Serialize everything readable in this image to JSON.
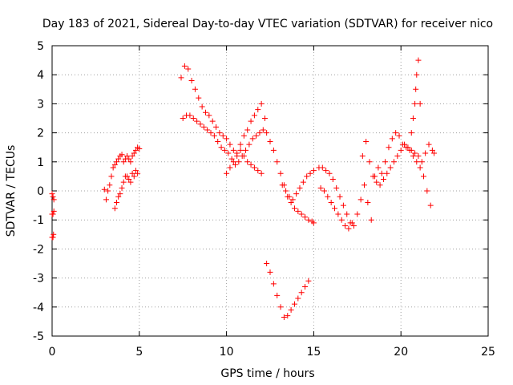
{
  "chart_data": {
    "type": "scatter",
    "title": "Day 183 of 2021, Sidereal Day-to-day VTEC variation (SDTVAR) for receiver nico",
    "xlabel": "GPS time / hours",
    "ylabel": "SDTVAR / TECUs",
    "xlim": [
      0,
      25
    ],
    "ylim": [
      -5,
      5
    ],
    "xticks": [
      0,
      5,
      10,
      15,
      20,
      25
    ],
    "yticks": [
      -5,
      -4,
      -3,
      -2,
      -1,
      0,
      1,
      2,
      3,
      4,
      5
    ],
    "grid": true,
    "marker": "+",
    "series_color": "#ff0000",
    "series": [
      {
        "x": [
          0.0,
          0.05,
          0.1,
          0.0,
          0.05,
          0.1,
          0.0,
          0.05,
          0.08,
          3.0,
          3.1,
          3.2,
          3.3,
          3.4,
          3.5,
          3.6,
          3.7,
          3.8,
          3.9,
          4.0,
          4.1,
          4.2,
          4.3,
          4.4,
          4.5,
          4.6,
          4.7,
          4.8,
          4.9,
          5.0,
          3.6,
          3.7,
          3.8,
          3.9,
          4.0,
          4.1,
          4.2,
          4.3,
          4.4,
          4.5,
          4.6,
          4.7,
          4.8,
          4.9,
          7.4,
          7.6,
          7.8,
          8.0,
          8.2,
          8.4,
          8.6,
          8.8,
          9.0,
          9.2,
          9.4,
          9.6,
          9.8,
          10.0,
          10.2,
          10.4,
          10.6,
          10.8,
          11.0,
          11.2,
          11.4,
          11.6,
          11.8,
          12.0,
          12.2,
          7.5,
          7.7,
          7.9,
          8.1,
          8.3,
          8.5,
          8.7,
          8.9,
          9.1,
          9.3,
          9.5,
          9.7,
          9.9,
          10.1,
          10.3,
          10.5,
          10.7,
          10.9,
          11.1,
          11.3,
          11.5,
          11.7,
          11.9,
          12.1,
          10.0,
          10.2,
          10.4,
          10.6,
          10.8,
          11.0,
          11.2,
          11.4,
          11.6,
          11.8,
          12.0,
          12.3,
          12.5,
          12.7,
          12.9,
          13.1,
          13.3,
          13.5,
          13.7,
          13.9,
          14.1,
          14.3,
          14.5,
          14.7,
          14.9,
          15.0,
          12.3,
          12.5,
          12.7,
          12.9,
          13.1,
          13.3,
          13.5,
          13.7,
          13.9,
          14.1,
          14.3,
          14.5,
          14.7,
          13.2,
          13.4,
          13.6,
          13.8,
          14.0,
          14.2,
          14.4,
          14.6,
          14.8,
          15.0,
          15.3,
          15.5,
          15.7,
          15.9,
          16.1,
          16.3,
          16.5,
          16.7,
          16.9,
          17.1,
          17.3,
          17.5,
          17.7,
          17.9,
          15.4,
          15.6,
          15.8,
          16.0,
          16.2,
          16.4,
          16.6,
          16.8,
          17.0,
          17.2,
          17.8,
          18.0,
          18.2,
          18.4,
          18.6,
          18.8,
          19.0,
          19.2,
          19.4,
          19.6,
          19.8,
          20.0,
          20.2,
          20.4,
          20.6,
          20.8,
          21.0,
          21.2,
          21.4,
          21.6,
          21.8,
          21.9,
          18.1,
          18.3,
          18.5,
          18.7,
          18.9,
          19.1,
          19.3,
          19.5,
          19.7,
          19.9,
          20.1,
          20.3,
          20.5,
          20.7,
          20.9,
          21.1,
          21.3,
          21.5,
          21.7,
          20.6,
          20.7,
          20.8,
          20.85,
          20.9,
          21.0,
          21.1
        ],
        "y": [
          -0.1,
          -0.2,
          -0.3,
          -0.8,
          -0.8,
          -0.7,
          -1.6,
          -1.6,
          -1.5,
          0.05,
          -0.3,
          0.0,
          0.2,
          0.5,
          0.8,
          0.9,
          1.0,
          1.1,
          1.2,
          1.25,
          1.0,
          1.1,
          1.2,
          1.1,
          1.0,
          1.2,
          1.3,
          1.4,
          1.5,
          1.45,
          -0.6,
          -0.4,
          -0.2,
          -0.1,
          0.1,
          0.3,
          0.5,
          0.5,
          0.4,
          0.3,
          0.6,
          0.5,
          0.7,
          0.6,
          3.9,
          4.3,
          4.2,
          3.8,
          3.5,
          3.2,
          2.9,
          2.7,
          2.6,
          2.4,
          2.2,
          2.0,
          1.9,
          1.8,
          1.6,
          1.4,
          1.3,
          1.6,
          1.9,
          2.1,
          2.4,
          2.6,
          2.8,
          3.0,
          2.5,
          2.5,
          2.6,
          2.6,
          2.5,
          2.4,
          2.3,
          2.2,
          2.1,
          2.0,
          1.9,
          1.7,
          1.5,
          1.4,
          1.3,
          1.1,
          0.9,
          1.0,
          1.2,
          1.4,
          1.6,
          1.8,
          1.9,
          2.0,
          2.1,
          0.6,
          0.8,
          1.0,
          1.2,
          1.4,
          1.2,
          1.0,
          0.9,
          0.8,
          0.7,
          0.6,
          2.0,
          1.7,
          1.4,
          1.0,
          0.6,
          0.2,
          -0.2,
          -0.4,
          -0.6,
          -0.7,
          -0.8,
          -0.9,
          -1.0,
          -1.05,
          -1.1,
          -2.5,
          -2.8,
          -3.2,
          -3.6,
          -4.0,
          -4.35,
          -4.3,
          -4.1,
          -3.9,
          -3.7,
          -3.5,
          -3.3,
          -3.1,
          0.2,
          0.0,
          -0.2,
          -0.3,
          -0.1,
          0.1,
          0.3,
          0.5,
          0.6,
          0.7,
          0.8,
          0.8,
          0.7,
          0.6,
          0.4,
          0.1,
          -0.2,
          -0.5,
          -0.8,
          -1.1,
          -1.2,
          -0.8,
          -0.3,
          0.2,
          0.1,
          0.0,
          -0.2,
          -0.4,
          -0.6,
          -0.8,
          -1.0,
          -1.2,
          -1.3,
          -1.1,
          1.2,
          1.7,
          1.0,
          0.5,
          0.3,
          0.2,
          0.4,
          0.6,
          0.8,
          1.0,
          1.2,
          1.4,
          1.6,
          1.5,
          1.4,
          1.3,
          1.2,
          1.0,
          1.3,
          1.6,
          1.4,
          1.3,
          -0.4,
          -1.0,
          0.5,
          0.8,
          0.6,
          1.0,
          1.5,
          1.8,
          2.0,
          1.9,
          1.6,
          1.5,
          1.4,
          1.2,
          1.0,
          0.8,
          0.5,
          0.0,
          -0.5,
          2.0,
          2.5,
          3.0,
          3.5,
          4.0,
          4.5,
          3.0
        ]
      }
    ]
  }
}
